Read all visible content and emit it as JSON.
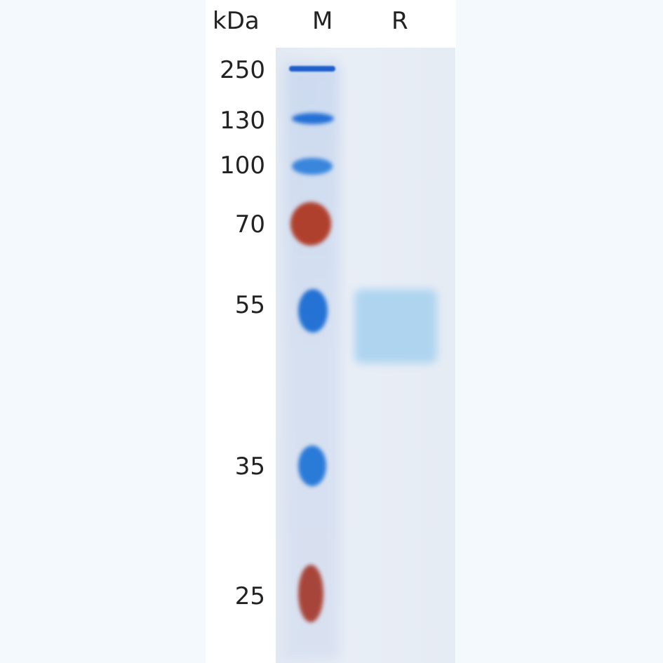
{
  "header": {
    "unit_label": "kDa",
    "lane_labels": [
      "M",
      "R"
    ]
  },
  "markers": [
    {
      "label": "250",
      "color": "#1f5fcc"
    },
    {
      "label": "130",
      "color": "#2470d6"
    },
    {
      "label": "100",
      "color": "#3a86dd"
    },
    {
      "label": "70",
      "color": "#b0402e"
    },
    {
      "label": "55",
      "color": "#2372d4"
    },
    {
      "label": "35",
      "color": "#2a7ad8"
    },
    {
      "label": "25",
      "color": "#a8453a"
    }
  ],
  "sample_band": {
    "lane": "R",
    "color": "#a8d2ef"
  }
}
